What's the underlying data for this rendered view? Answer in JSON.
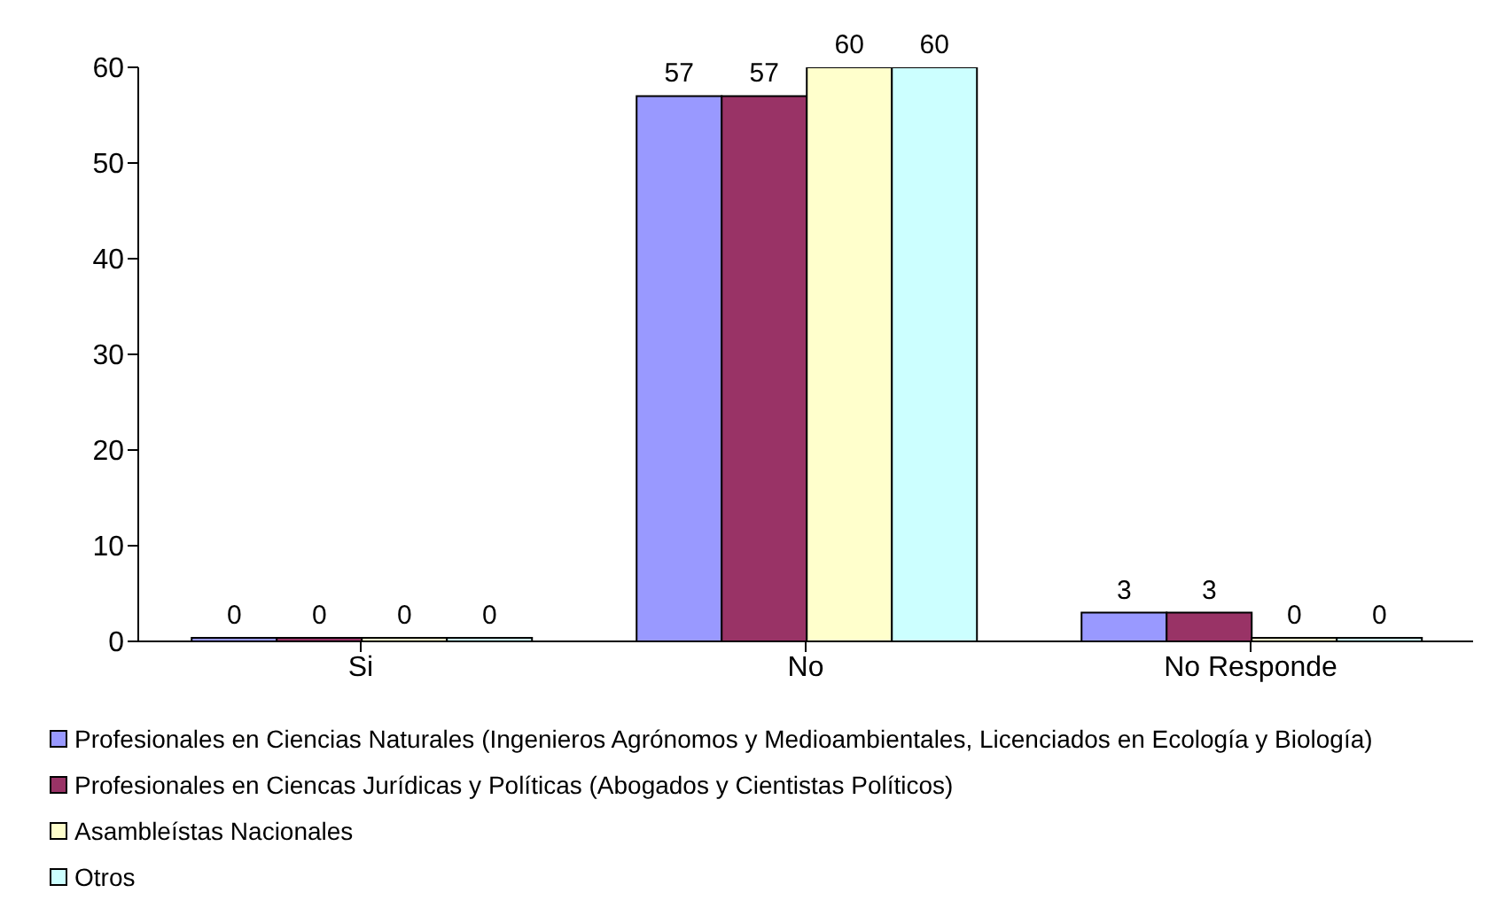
{
  "chart_data": {
    "type": "bar",
    "categories": [
      "Si",
      "No",
      "No Responde"
    ],
    "series": [
      {
        "name": "Profesionales en Ciencias Naturales (Ingenieros Agrónomos y Medioambientales, Licenciados en Ecología y Biología)",
        "color": "#9999ff",
        "values": [
          0,
          57,
          3
        ]
      },
      {
        "name": "Profesionales en Ciencas Jurídicas y Políticas (Abogados y Cientistas Políticos)",
        "color": "#993366",
        "values": [
          0,
          57,
          3
        ]
      },
      {
        "name": "Asambleístas Nacionales",
        "color": "#ffffcc",
        "values": [
          0,
          60,
          0
        ]
      },
      {
        "name": "Otros",
        "color": "#ccffff",
        "values": [
          0,
          60,
          0
        ]
      }
    ],
    "ylim": [
      0,
      60
    ],
    "yticks": [
      0,
      10,
      20,
      30,
      40,
      50,
      60
    ],
    "data_labels": true,
    "grid": false,
    "legend": "bottom"
  }
}
